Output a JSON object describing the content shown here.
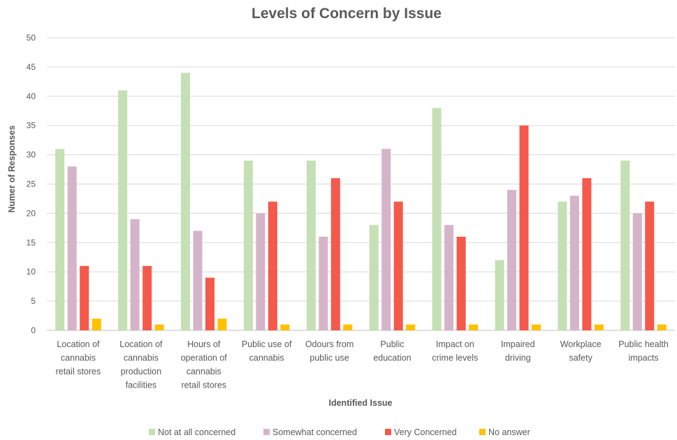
{
  "chart_data": {
    "type": "bar",
    "title": "Levels of Concern by Issue",
    "xlabel": "Identified Issue",
    "ylabel": "Numer of Responses",
    "ylim": [
      0,
      50
    ],
    "yticks": [
      0,
      5,
      10,
      15,
      20,
      25,
      30,
      35,
      40,
      45,
      50
    ],
    "grid": true,
    "legend": "bottom",
    "categories": [
      [
        "Location of",
        "cannabis",
        "retail stores"
      ],
      [
        "Location of",
        "cannabis",
        "production",
        "facilities"
      ],
      [
        "Hours of",
        "operation of",
        "cannabis",
        "retail stores"
      ],
      [
        "Public use of",
        "cannabis"
      ],
      [
        "Odours from",
        "public use"
      ],
      [
        "Public",
        "education"
      ],
      [
        "Impact on",
        "crime levels"
      ],
      [
        "Impaired",
        "driving"
      ],
      [
        "Workplace",
        "safety"
      ],
      [
        "Public health",
        "impacts"
      ]
    ],
    "series": [
      {
        "name": "Not at all concerned",
        "color": "#c5e0b4",
        "values": [
          31,
          41,
          44,
          29,
          29,
          18,
          38,
          12,
          22,
          29
        ]
      },
      {
        "name": "Somewhat concerned",
        "color": "#d5b4c9",
        "values": [
          28,
          19,
          17,
          20,
          16,
          31,
          18,
          24,
          23,
          20
        ]
      },
      {
        "name": "Very Concerned",
        "color": "#f4594b",
        "values": [
          11,
          11,
          9,
          22,
          26,
          22,
          16,
          35,
          26,
          22
        ]
      },
      {
        "name": "No answer",
        "color": "#ffc000",
        "values": [
          2,
          1,
          2,
          1,
          1,
          1,
          1,
          1,
          1,
          1
        ]
      }
    ]
  }
}
